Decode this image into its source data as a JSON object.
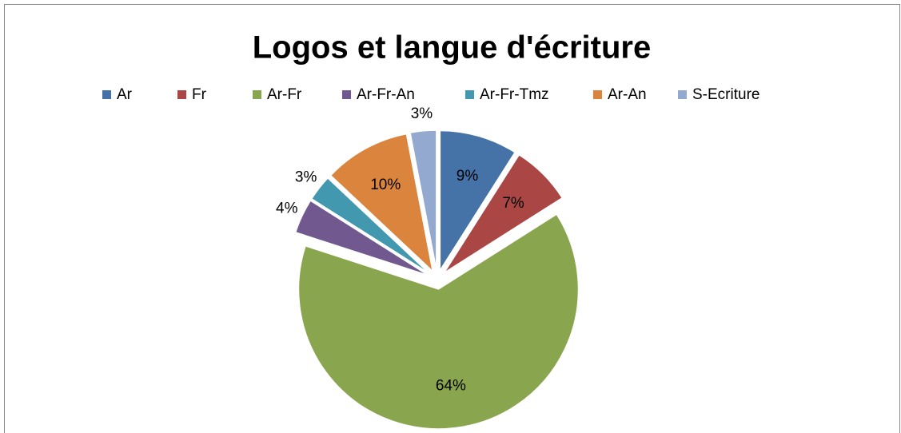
{
  "chart_data": {
    "type": "pie",
    "title": "Logos et langue d'écriture",
    "categories": [
      "Ar",
      "Fr",
      "Ar-Fr",
      "Ar-Fr-An",
      "Ar-Fr-Tmz",
      "Ar-An",
      "S-Ecriture"
    ],
    "values": [
      9,
      7,
      64,
      4,
      3,
      10,
      3
    ],
    "value_labels": [
      "9%",
      "7%",
      "64%",
      "4%",
      "3%",
      "10%",
      "3%"
    ],
    "colors": [
      "#4572a7",
      "#aa4643",
      "#89a54e",
      "#71588f",
      "#4198af",
      "#db843d",
      "#93a9cf"
    ],
    "legend": "top",
    "exploded": true
  }
}
